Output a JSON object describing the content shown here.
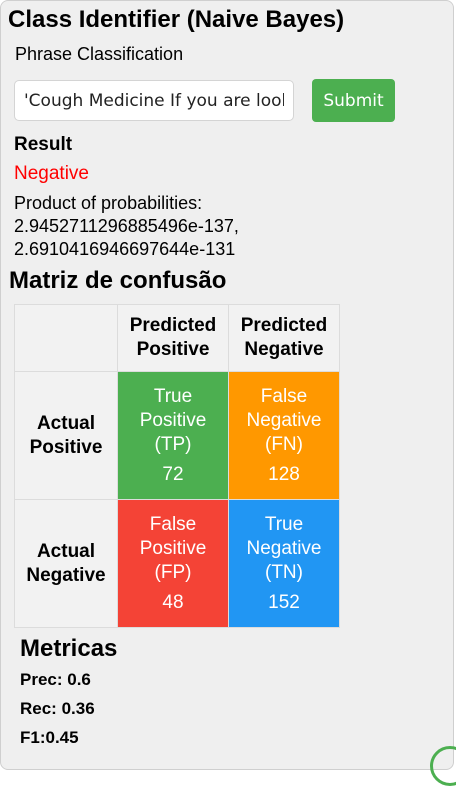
{
  "app": {
    "title": "Class Identifier (Naive Bayes)",
    "subtitle": "Phrase Classification"
  },
  "form": {
    "input_value": "'Cough Medicine If you are looking for a cough medicine",
    "submit_label": "Submit"
  },
  "result": {
    "label": "Result",
    "value": "Negative",
    "value_color": "#ff0000",
    "product_label": "Product of probabilities:",
    "product_values": [
      "2.9452711296885496e-137,",
      "2.6910416946697644e-131"
    ]
  },
  "matrix": {
    "title": "Matriz de confusão",
    "col_headers": [
      {
        "line1": "Predicted",
        "line2": "Positive"
      },
      {
        "line1": "Predicted",
        "line2": "Negative"
      }
    ],
    "row_headers": [
      {
        "line1": "Actual",
        "line2": "Positive"
      },
      {
        "line1": "Actual",
        "line2": "Negative"
      }
    ],
    "cells": {
      "tp": {
        "line1": "True",
        "line2": "Positive",
        "line3": "(TP)",
        "count": "72",
        "color": "#4caf50"
      },
      "fn": {
        "line1": "False",
        "line2": "Negative",
        "line3": "(FN)",
        "count": "128",
        "color": "#ff9800"
      },
      "fp": {
        "line1": "False",
        "line2": "Positive",
        "line3": "(FP)",
        "count": "48",
        "color": "#f44336"
      },
      "tn": {
        "line1": "True",
        "line2": "Negative",
        "line3": "(TN)",
        "count": "152",
        "color": "#2196f3"
      }
    }
  },
  "metrics": {
    "title": "Metricas",
    "precision": "Prec: 0.6",
    "recall": "Rec: 0.36",
    "f1": "F1:0.45"
  }
}
